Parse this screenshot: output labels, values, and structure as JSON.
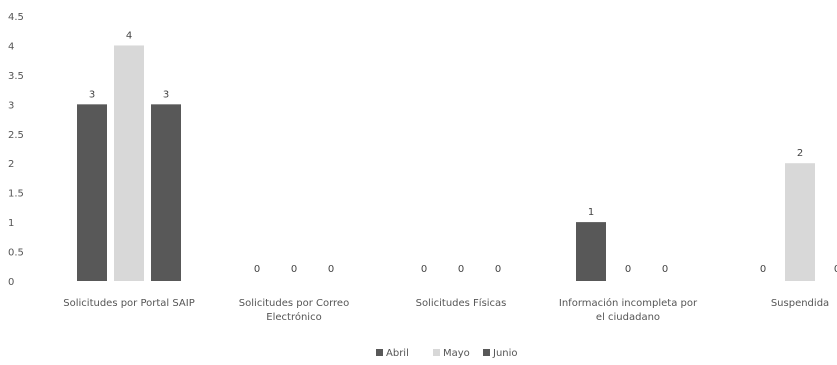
{
  "colors": {
    "Abril": "#585858",
    "Mayo": "#d8d8d8",
    "Junio": "#585858"
  },
  "chart_data": {
    "type": "bar",
    "title": "",
    "xlabel": "",
    "ylabel": "",
    "ylim": [
      0,
      4.5
    ],
    "yticks": [
      "0",
      "0.5",
      "1",
      "1.5",
      "2",
      "2.5",
      "3",
      "3.5",
      "4",
      "4.5"
    ],
    "grid": false,
    "legend_position": "bottom",
    "categories": [
      [
        "Solicitudes por Portal SAIP"
      ],
      [
        "Solicitudes por Correo",
        "Electrónico"
      ],
      [
        "Solicitudes Físicas"
      ],
      [
        "Información incompleta por",
        "el ciudadano"
      ],
      [
        "Suspendida"
      ]
    ],
    "series": [
      {
        "name": "Abril",
        "values": [
          3,
          0,
          0,
          1,
          0
        ]
      },
      {
        "name": "Mayo",
        "values": [
          4,
          0,
          0,
          0,
          2
        ]
      },
      {
        "name": "Junio",
        "values": [
          3,
          0,
          0,
          0,
          0
        ]
      }
    ]
  }
}
